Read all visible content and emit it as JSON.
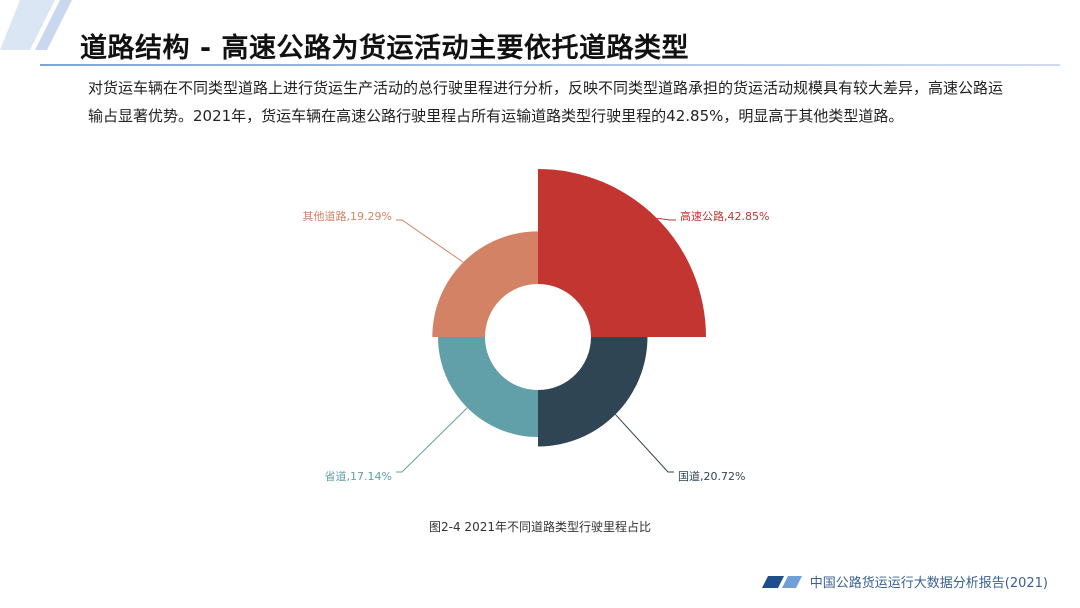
{
  "header": {
    "title": "道路结构 - 高速公路为货运活动主要依托道路类型"
  },
  "intro": {
    "text": "对货运车辆在不同类型道路上进行货运生产活动的总行驶里程进行分析，反映不同类型道路承担的货运活动规模具有较大差异，高速公路运输占显著优势。2021年，货运车辆在高速公路行驶里程占所有运输道路类型行驶里程的42.85%，明显高于其他类型道路。"
  },
  "chart_data": {
    "type": "pie",
    "subtype": "rose",
    "title": "图2-4 2021年不同道路类型行驶里程占比",
    "slices": [
      {
        "label": "高速公路",
        "value": 42.85,
        "display": "高速公路,42.85%",
        "color": "#c23531"
      },
      {
        "label": "国道",
        "value": 20.72,
        "display": "国道,20.72%",
        "color": "#2f4554"
      },
      {
        "label": "省道",
        "value": 17.14,
        "display": "省道,17.14%",
        "color": "#61a0a8"
      },
      {
        "label": "其他道路",
        "value": 19.29,
        "display": "其他道路,19.29%",
        "color": "#d48265"
      }
    ]
  },
  "footer": {
    "text": "中国公路货运运行大数据分析报告(2021)",
    "color": "#3a5f93"
  }
}
